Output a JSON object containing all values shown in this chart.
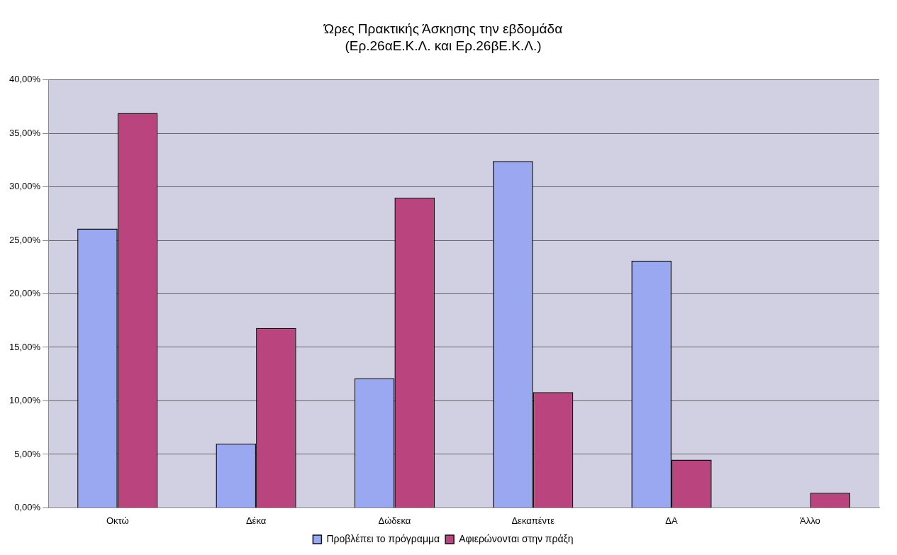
{
  "chart_data": {
    "type": "bar",
    "title": "Ώρες Πρακτικής Άσκησης την εβδομάδα",
    "subtitle": "(Ερ.26αΕ.Κ.Λ. και Ερ.26βΕ.Κ.Λ.)",
    "categories": [
      "Οκτώ",
      "Δέκα",
      "Δώδεκα",
      "Δεκαπέντε",
      "ΔΑ",
      "Άλλο"
    ],
    "series": [
      {
        "name": "Προβλέπει το πρόγραμμα",
        "color": "#99a8f0",
        "values": [
          26.1,
          6.0,
          12.1,
          32.4,
          23.1,
          null
        ]
      },
      {
        "name": "Αφιερώνονται στην πράξη",
        "color": "#b9447e",
        "values": [
          36.9,
          16.8,
          29.0,
          10.8,
          4.5,
          1.4
        ]
      }
    ],
    "ylim": [
      0,
      40
    ],
    "yticks": [
      {
        "value": 0,
        "label": "0,00%"
      },
      {
        "value": 5,
        "label": "5,00%"
      },
      {
        "value": 10,
        "label": "10,00%"
      },
      {
        "value": 15,
        "label": "15,00%"
      },
      {
        "value": 20,
        "label": "20,00%"
      },
      {
        "value": 25,
        "label": "25,00%"
      },
      {
        "value": 30,
        "label": "30,00%"
      },
      {
        "value": 35,
        "label": "35,00%"
      },
      {
        "value": 40,
        "label": "40,00%"
      }
    ],
    "grid": "y",
    "legend": "bottom"
  }
}
